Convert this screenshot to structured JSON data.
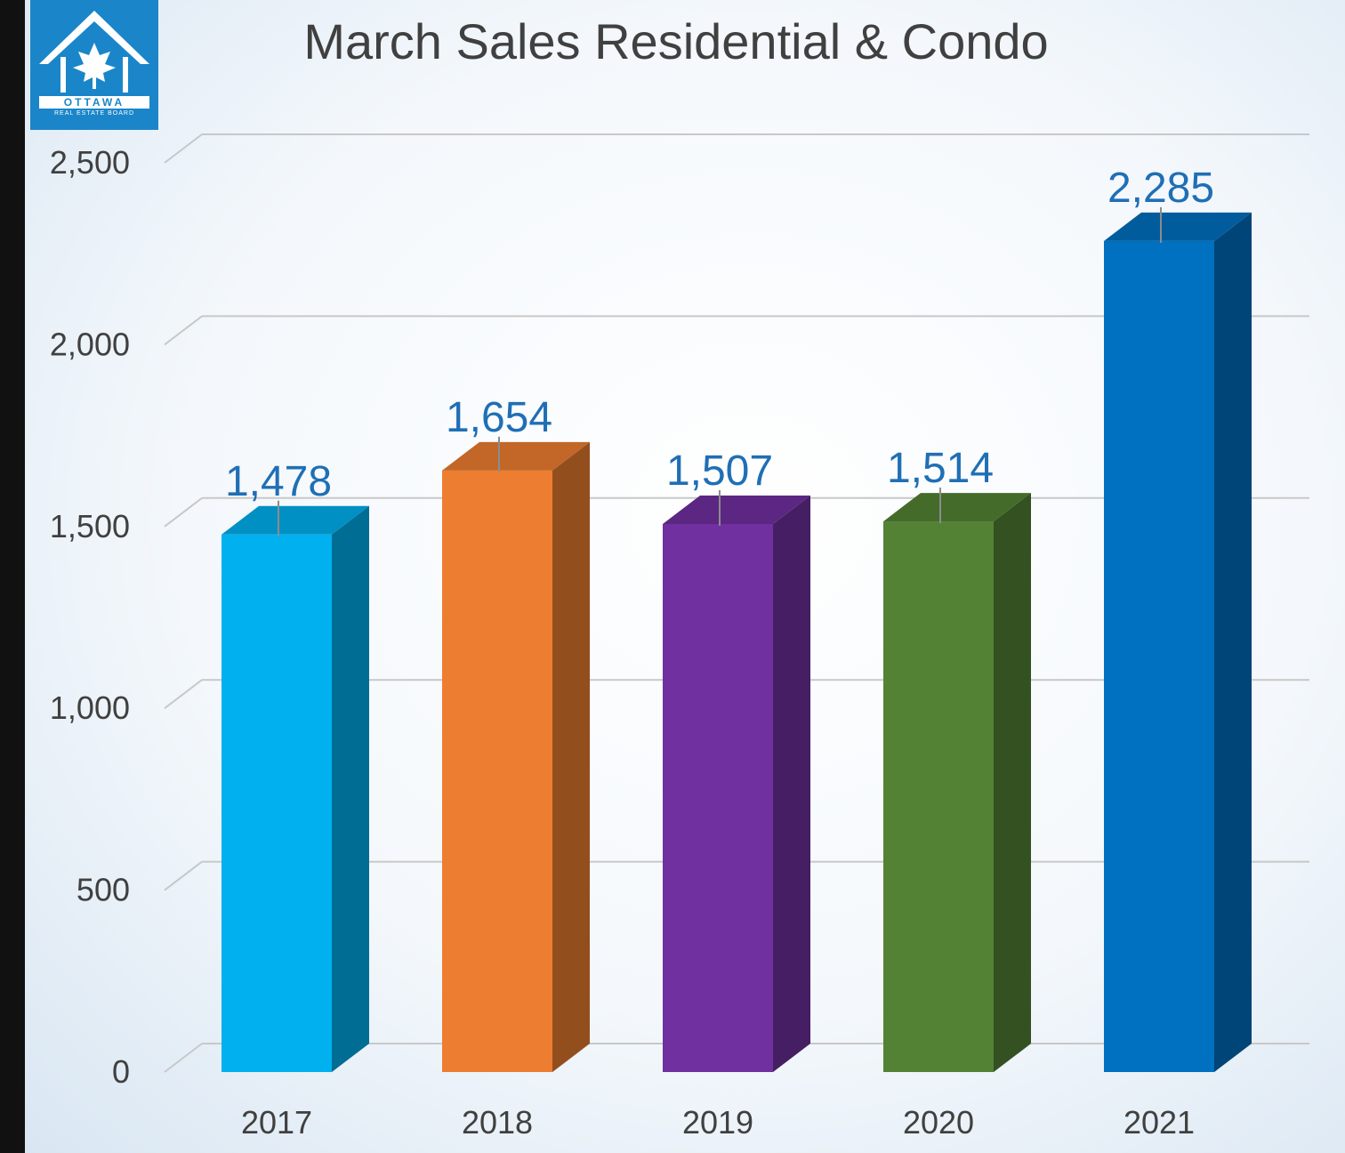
{
  "chart_data": {
    "type": "bar",
    "title": "March Sales Residential & Condo",
    "categories": [
      "2017",
      "2018",
      "2019",
      "2020",
      "2021"
    ],
    "values": [
      1478,
      1654,
      1507,
      1514,
      2285
    ],
    "data_labels": [
      "1,478",
      "1,654",
      "1,507",
      "1,514",
      "2,285"
    ],
    "ylim": [
      0,
      2500
    ],
    "yticks": [
      0,
      500,
      1000,
      1500,
      2000,
      2500
    ],
    "ytick_labels": [
      "0",
      "500",
      "1,000",
      "1,500",
      "2,000",
      "2,500"
    ],
    "xlabel": "",
    "ylabel": "",
    "grid": true,
    "style": "3d-column",
    "bar_colors": [
      "#00b0ef",
      "#ed7d31",
      "#7030a0",
      "#548235",
      "#0070c0"
    ],
    "label_color": "#1f6fb5"
  },
  "logo": {
    "wordmark": "OTTAWA",
    "sub": "REAL ESTATE BOARD",
    "icon": "maple-leaf-house-icon"
  }
}
